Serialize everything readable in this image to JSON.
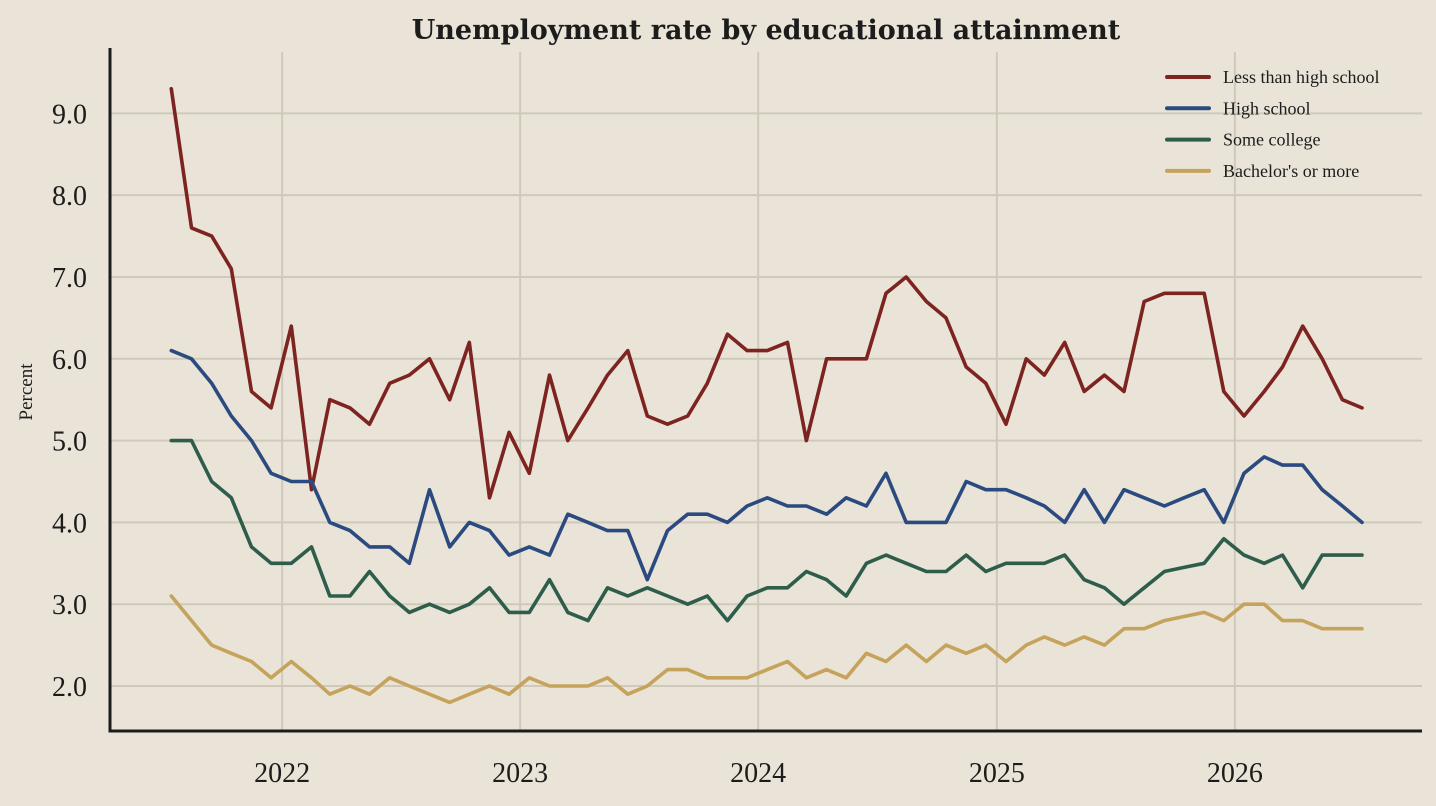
{
  "chart_data": {
    "type": "line",
    "title": "Unemployment rate by educational attainment",
    "xlabel": "",
    "ylabel": "Percent",
    "ylim": [
      1.45,
      9.75
    ],
    "yticks": [
      2.0,
      3.0,
      4.0,
      5.0,
      6.0,
      7.0,
      8.0,
      9.0
    ],
    "ytick_labels": [
      "2.0",
      "3.0",
      "4.0",
      "5.0",
      "6.0",
      "7.0",
      "8.0",
      "9.0"
    ],
    "xlim": [
      "2021-04-12",
      "2026-10-15"
    ],
    "xticks": [
      "2022-01-01",
      "2023-01-01",
      "2024-01-01",
      "2025-01-01",
      "2026-01-01"
    ],
    "xtick_labels": [
      "2022",
      "2023",
      "2024",
      "2025",
      "2026"
    ],
    "grid": true,
    "legend_position": "top-right",
    "x": [
      "2021-07",
      "2021-08",
      "2021-09",
      "2021-10",
      "2021-11",
      "2021-12",
      "2022-01",
      "2022-02",
      "2022-03",
      "2022-04",
      "2022-05",
      "2022-06",
      "2022-07",
      "2022-08",
      "2022-09",
      "2022-10",
      "2022-11",
      "2022-12",
      "2023-01",
      "2023-02",
      "2023-03",
      "2023-04",
      "2023-05",
      "2023-06",
      "2023-07",
      "2023-08",
      "2023-09",
      "2023-10",
      "2023-11",
      "2023-12",
      "2024-01",
      "2024-02",
      "2024-03",
      "2024-04",
      "2024-05",
      "2024-06",
      "2024-07",
      "2024-08",
      "2024-09",
      "2024-10",
      "2024-11",
      "2024-12",
      "2025-01",
      "2025-02",
      "2025-03",
      "2025-04",
      "2025-05",
      "2025-06",
      "2025-07",
      "2025-08",
      "2025-09",
      "2025-10",
      "2025-11",
      "2025-12",
      "2026-01",
      "2026-02",
      "2026-03",
      "2026-04",
      "2026-05",
      "2026-06",
      "2026-07"
    ],
    "series": [
      {
        "name": "Less than high school",
        "color": "#7d2320",
        "values": [
          9.3,
          7.6,
          7.5,
          7.1,
          5.6,
          5.4,
          6.4,
          4.4,
          5.5,
          5.4,
          5.2,
          5.7,
          5.8,
          6.0,
          5.5,
          6.2,
          4.3,
          5.1,
          4.6,
          5.8,
          5.0,
          5.4,
          5.8,
          6.1,
          5.3,
          5.2,
          5.3,
          5.7,
          6.3,
          6.1,
          6.1,
          6.2,
          5.0,
          6.0,
          6.0,
          6.0,
          6.8,
          7.0,
          6.7,
          6.5,
          5.9,
          5.7,
          5.2,
          6.0,
          5.8,
          6.2,
          5.6,
          5.8,
          5.6,
          6.7,
          6.8,
          6.8,
          6.8,
          5.6,
          5.3,
          5.6,
          5.9,
          6.4,
          6.0,
          5.5,
          5.4
        ]
      },
      {
        "name": "High school",
        "color": "#2b4a80",
        "values": [
          6.1,
          6.0,
          5.7,
          5.3,
          5.0,
          4.6,
          4.5,
          4.5,
          4.0,
          3.9,
          3.7,
          3.7,
          3.5,
          4.4,
          3.7,
          4.0,
          3.9,
          3.6,
          3.7,
          3.6,
          4.1,
          4.0,
          3.9,
          3.9,
          3.3,
          3.9,
          4.1,
          4.1,
          4.0,
          4.2,
          4.3,
          4.2,
          4.2,
          4.1,
          4.3,
          4.2,
          4.6,
          4.0,
          4.0,
          4.0,
          4.5,
          4.4,
          4.4,
          4.3,
          4.2,
          4.0,
          4.4,
          4.0,
          4.4,
          4.3,
          4.2,
          4.3,
          4.4,
          4.0,
          4.6,
          4.8,
          4.7,
          4.7,
          4.4,
          4.2,
          4.0
        ]
      },
      {
        "name": "Some college",
        "color": "#2e5e4b",
        "values": [
          5.0,
          5.0,
          4.5,
          4.3,
          3.7,
          3.5,
          3.5,
          3.7,
          3.1,
          3.1,
          3.4,
          3.1,
          2.9,
          3.0,
          2.9,
          3.0,
          3.2,
          2.9,
          2.9,
          3.3,
          2.9,
          2.8,
          3.2,
          3.1,
          3.2,
          3.1,
          3.0,
          3.1,
          2.8,
          3.1,
          3.2,
          3.2,
          3.4,
          3.3,
          3.1,
          3.5,
          3.6,
          3.5,
          3.4,
          3.4,
          3.6,
          3.4,
          3.5,
          3.5,
          3.5,
          3.6,
          3.3,
          3.2,
          3.0,
          3.2,
          3.4,
          3.45,
          3.5,
          3.8,
          3.6,
          3.5,
          3.6,
          3.2,
          3.6,
          3.6,
          3.6
        ]
      },
      {
        "name": "Bachelor's or more",
        "color": "#c6a35c",
        "values": [
          3.1,
          2.8,
          2.5,
          2.4,
          2.3,
          2.1,
          2.3,
          2.1,
          1.9,
          2.0,
          1.9,
          2.1,
          2.0,
          1.9,
          1.8,
          1.9,
          2.0,
          1.9,
          2.1,
          2.0,
          2.0,
          2.0,
          2.1,
          1.9,
          2.0,
          2.2,
          2.2,
          2.1,
          2.1,
          2.1,
          2.2,
          2.3,
          2.1,
          2.2,
          2.1,
          2.4,
          2.3,
          2.5,
          2.3,
          2.5,
          2.4,
          2.5,
          2.3,
          2.5,
          2.6,
          2.5,
          2.6,
          2.5,
          2.7,
          2.7,
          2.8,
          2.85,
          2.9,
          2.8,
          3.0,
          3.0,
          2.8,
          2.8,
          2.7,
          2.7,
          2.7
        ]
      }
    ]
  },
  "colors": {
    "background": "#e9e4d7",
    "grid": "#cfc9bb",
    "axis": "#1c1c1c"
  }
}
